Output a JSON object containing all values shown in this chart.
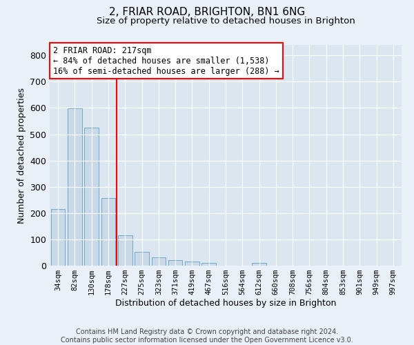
{
  "title1": "2, FRIAR ROAD, BRIGHTON, BN1 6NG",
  "title2": "Size of property relative to detached houses in Brighton",
  "xlabel": "Distribution of detached houses by size in Brighton",
  "ylabel": "Number of detached properties",
  "bar_labels": [
    "34sqm",
    "82sqm",
    "130sqm",
    "178sqm",
    "227sqm",
    "275sqm",
    "323sqm",
    "371sqm",
    "419sqm",
    "467sqm",
    "516sqm",
    "564sqm",
    "612sqm",
    "660sqm",
    "708sqm",
    "756sqm",
    "804sqm",
    "853sqm",
    "901sqm",
    "949sqm",
    "997sqm"
  ],
  "bar_values": [
    215,
    598,
    525,
    256,
    115,
    52,
    31,
    20,
    16,
    11,
    0,
    0,
    10,
    0,
    0,
    0,
    0,
    0,
    0,
    0,
    0
  ],
  "bar_color": "#c9d9e8",
  "bar_edgecolor": "#6fa8c8",
  "vline_x": 3.5,
  "vline_color": "red",
  "annotation_text": "2 FRIAR ROAD: 217sqm\n← 84% of detached houses are smaller (1,538)\n16% of semi-detached houses are larger (288) →",
  "annotation_box_color": "white",
  "annotation_box_edgecolor": "red",
  "ylim": [
    0,
    840
  ],
  "yticks": [
    0,
    100,
    200,
    300,
    400,
    500,
    600,
    700,
    800
  ],
  "footnote": "Contains HM Land Registry data © Crown copyright and database right 2024.\nContains public sector information licensed under the Open Government Licence v3.0.",
  "bg_color": "#eaf0f8",
  "plot_bg_color": "#dce6f0",
  "grid_color": "white",
  "title1_fontsize": 11,
  "title2_fontsize": 9.5,
  "footnote_fontsize": 7
}
